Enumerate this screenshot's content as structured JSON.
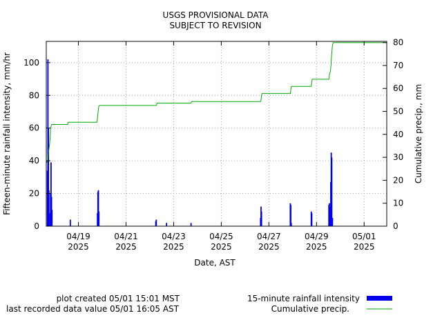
{
  "header": {
    "line1": "USGS PROVISIONAL DATA",
    "line2": "SUBJECT TO REVISION"
  },
  "footer": {
    "created": "plot created 05/01 15:01 MST",
    "last_value": "last recorded data value 05/01 16:05 AST"
  },
  "colors": {
    "intensity": "#0000ee",
    "cumulative": "#00aa00",
    "grid": "#a0a0a0"
  },
  "chart_data": {
    "type": "bar",
    "xlabel": "Date, AST",
    "ylabel_left": "Fifteen-minute rainfall intensity, mm/hr",
    "ylabel_right": "Cumulative precip., mm",
    "xlim": [
      -1.35,
      12.95
    ],
    "ylim_left": [
      0,
      113
    ],
    "ylim_right": [
      0,
      80.5
    ],
    "yticks_left": [
      0,
      20,
      40,
      60,
      80,
      100
    ],
    "yticks_right": [
      0,
      10,
      20,
      30,
      40,
      50,
      60,
      70,
      80
    ],
    "xticks": [
      {
        "pos": 0,
        "line1": "04/19",
        "line2": "2025"
      },
      {
        "pos": 2,
        "line1": "04/21",
        "line2": "2025"
      },
      {
        "pos": 4,
        "line1": "04/23",
        "line2": "2025"
      },
      {
        "pos": 6,
        "line1": "04/25",
        "line2": "2025"
      },
      {
        "pos": 8,
        "line1": "04/27",
        "line2": "2025"
      },
      {
        "pos": 10,
        "line1": "04/29",
        "line2": "2025"
      },
      {
        "pos": 12,
        "line1": "05/01",
        "line2": "2025"
      }
    ],
    "grid": true,
    "x_units": "days since 04/19 00:00",
    "series": [
      {
        "name": "15-minute rainfall intensity",
        "type": "bar",
        "axis": "left",
        "points": [
          [
            -1.3,
            34
          ],
          [
            -1.28,
            102
          ],
          [
            -1.26,
            60
          ],
          [
            -1.24,
            22
          ],
          [
            -1.19,
            8
          ],
          [
            -1.17,
            20
          ],
          [
            -1.15,
            39
          ],
          [
            -1.13,
            18
          ],
          [
            -1.11,
            10
          ],
          [
            -0.34,
            4
          ],
          [
            0.8,
            8
          ],
          [
            0.82,
            21
          ],
          [
            0.84,
            22
          ],
          [
            0.86,
            9
          ],
          [
            3.25,
            3
          ],
          [
            3.27,
            4
          ],
          [
            3.7,
            2
          ],
          [
            4.73,
            2
          ],
          [
            7.65,
            5
          ],
          [
            7.67,
            12
          ],
          [
            7.69,
            9
          ],
          [
            8.9,
            14
          ],
          [
            8.92,
            13
          ],
          [
            8.94,
            2
          ],
          [
            9.78,
            9
          ],
          [
            9.8,
            8
          ],
          [
            10.52,
            13
          ],
          [
            10.54,
            14
          ],
          [
            10.56,
            12
          ],
          [
            10.6,
            27
          ],
          [
            10.62,
            45
          ],
          [
            10.64,
            42
          ],
          [
            10.67,
            5
          ]
        ]
      },
      {
        "name": "Cumulative precip.",
        "type": "line",
        "axis": "right",
        "points": [
          [
            -1.35,
            27.5
          ],
          [
            -1.32,
            28
          ],
          [
            -1.3,
            28.5
          ],
          [
            -1.28,
            30
          ],
          [
            -1.26,
            32
          ],
          [
            -1.22,
            35
          ],
          [
            -1.19,
            38
          ],
          [
            -1.17,
            42
          ],
          [
            -1.15,
            43.5
          ],
          [
            -1.12,
            44.3
          ],
          [
            -0.45,
            44.3
          ],
          [
            -0.43,
            45.3
          ],
          [
            0.78,
            45.3
          ],
          [
            0.82,
            49
          ],
          [
            0.84,
            51
          ],
          [
            0.86,
            52.3
          ],
          [
            0.9,
            52.6
          ],
          [
            3.27,
            52.6
          ],
          [
            3.3,
            53.6
          ],
          [
            4.73,
            53.6
          ],
          [
            4.76,
            54.3
          ],
          [
            7.65,
            54.3
          ],
          [
            7.67,
            55
          ],
          [
            7.69,
            57
          ],
          [
            7.71,
            57.8
          ],
          [
            8.9,
            57.8
          ],
          [
            8.92,
            59.5
          ],
          [
            8.94,
            60.9
          ],
          [
            9.78,
            60.9
          ],
          [
            9.8,
            62.6
          ],
          [
            9.82,
            64
          ],
          [
            10.52,
            64
          ],
          [
            10.54,
            66
          ],
          [
            10.58,
            67.3
          ],
          [
            10.61,
            70
          ],
          [
            10.63,
            74
          ],
          [
            10.66,
            78
          ],
          [
            10.7,
            80
          ],
          [
            12.95,
            80
          ]
        ]
      }
    ]
  }
}
